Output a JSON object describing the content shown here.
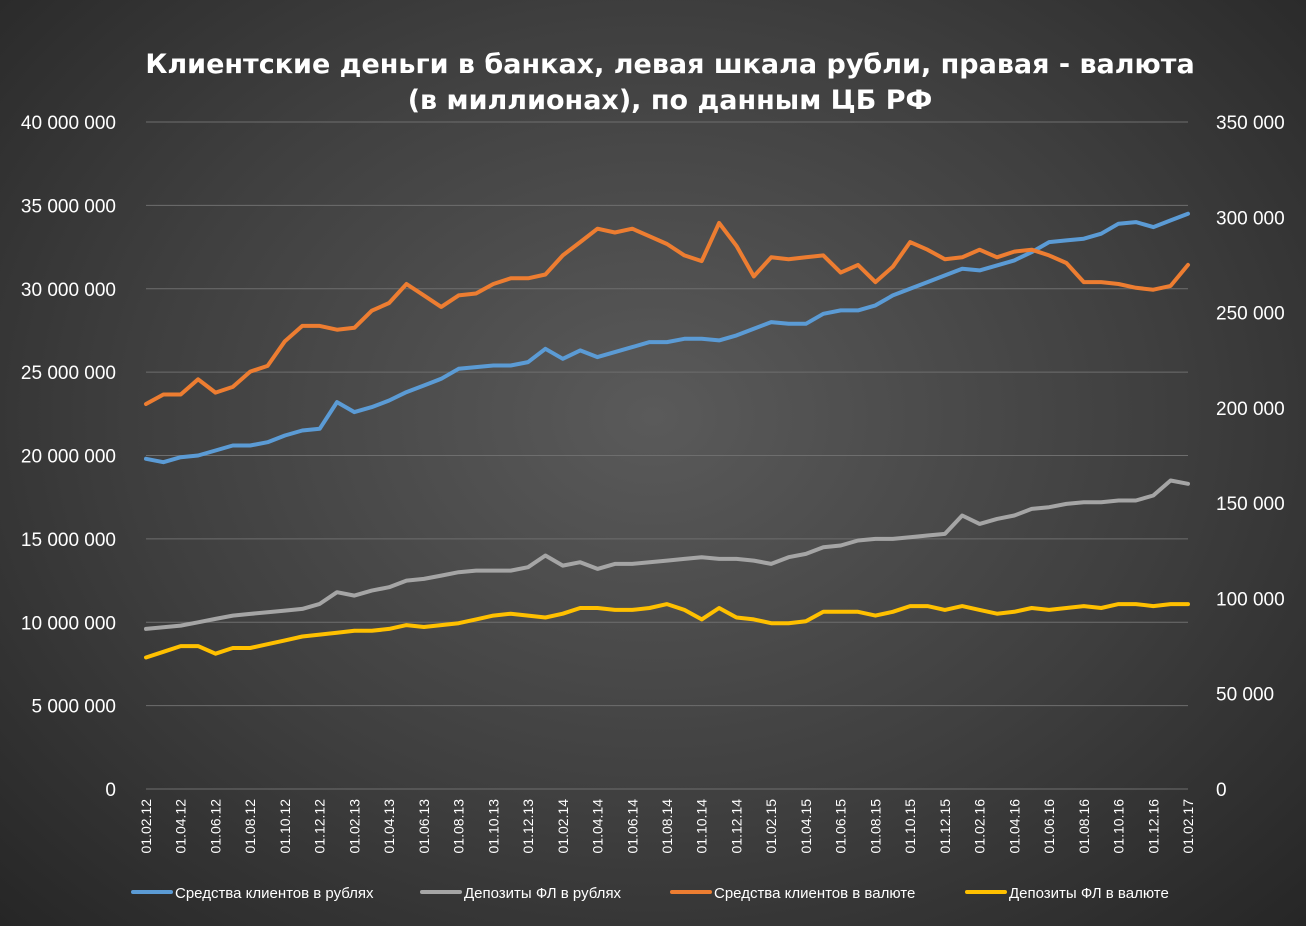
{
  "chart_data": {
    "type": "line",
    "title": "Клиентские деньги в банках, левая шкала рубли, правая - валюта",
    "subtitle": "(в миллионах), по данным ЦБ РФ",
    "x_tick_labels": [
      "01.02.12",
      "01.04.12",
      "01.06.12",
      "01.08.12",
      "01.10.12",
      "01.12.12",
      "01.02.13",
      "01.04.13",
      "01.06.13",
      "01.08.13",
      "01.10.13",
      "01.12.13",
      "01.02.14",
      "01.04.14",
      "01.06.14",
      "01.08.14",
      "01.10.14",
      "01.12.14",
      "01.02.15",
      "01.04.15",
      "01.06.15",
      "01.08.15",
      "01.10.15",
      "01.12.15",
      "01.02.16",
      "01.04.16",
      "01.06.16",
      "01.08.16",
      "01.10.16",
      "01.12.16",
      "01.02.17"
    ],
    "y_left": {
      "ylim": [
        0,
        40000000
      ],
      "ticks": [
        0,
        5000000,
        10000000,
        15000000,
        20000000,
        25000000,
        30000000,
        35000000,
        40000000
      ],
      "tick_labels": [
        "0",
        "5 000 000",
        "10 000 000",
        "15 000 000",
        "20 000 000",
        "25 000 000",
        "30 000 000",
        "35 000 000",
        "40 000 000"
      ]
    },
    "y_right": {
      "ylim": [
        0,
        350000
      ],
      "ticks": [
        0,
        50000,
        100000,
        150000,
        200000,
        250000,
        300000,
        350000
      ],
      "tick_labels": [
        "0",
        "50 000",
        "100 000",
        "150 000",
        "200 000",
        "250 000",
        "300 000",
        "350 000"
      ]
    },
    "grid": true,
    "legend_position": "bottom",
    "series": [
      {
        "name": "Средства клиентов в рублях",
        "axis": "left",
        "color": "#5b9bd5",
        "values": [
          19800000,
          19600000,
          19900000,
          20000000,
          20300000,
          20600000,
          20600000,
          20800000,
          21200000,
          21500000,
          21600000,
          23200000,
          22600000,
          22900000,
          23300000,
          23800000,
          24200000,
          24600000,
          25200000,
          25300000,
          25400000,
          25400000,
          25600000,
          26400000,
          25800000,
          26300000,
          25900000,
          26200000,
          26500000,
          26800000,
          26800000,
          27000000,
          27000000,
          26900000,
          27200000,
          27600000,
          28000000,
          27900000,
          27900000,
          28500000,
          28700000,
          28700000,
          29000000,
          29600000,
          30000000,
          30400000,
          30800000,
          31200000,
          31100000,
          31400000,
          31700000,
          32200000,
          32800000,
          32900000,
          33000000,
          33300000,
          33900000,
          34000000,
          33700000,
          34100000,
          34500000
        ]
      },
      {
        "name": "Депозиты ФЛ в рублях",
        "axis": "left",
        "color": "#a5a5a5",
        "values": [
          9600000,
          9700000,
          9800000,
          10000000,
          10200000,
          10400000,
          10500000,
          10600000,
          10700000,
          10800000,
          11100000,
          11800000,
          11600000,
          11900000,
          12100000,
          12500000,
          12600000,
          12800000,
          13000000,
          13100000,
          13100000,
          13100000,
          13300000,
          14000000,
          13400000,
          13600000,
          13200000,
          13500000,
          13500000,
          13600000,
          13700000,
          13800000,
          13900000,
          13800000,
          13800000,
          13700000,
          13500000,
          13900000,
          14100000,
          14500000,
          14600000,
          14900000,
          15000000,
          15000000,
          15100000,
          15200000,
          15300000,
          16400000,
          15900000,
          16200000,
          16400000,
          16800000,
          16900000,
          17100000,
          17200000,
          17200000,
          17300000,
          17300000,
          17600000,
          18500000,
          18300000
        ]
      },
      {
        "name": "Средства  клиентов в валюте",
        "axis": "right",
        "color": "#ed7d31",
        "values": [
          202000,
          207000,
          207000,
          215000,
          208000,
          211000,
          219000,
          222000,
          235000,
          243000,
          243000,
          241000,
          242000,
          251000,
          255000,
          265000,
          259000,
          253000,
          259000,
          260000,
          265000,
          268000,
          268000,
          270000,
          280000,
          287000,
          294000,
          292000,
          294000,
          290000,
          286000,
          280000,
          277000,
          297000,
          285000,
          269000,
          279000,
          278000,
          279000,
          280000,
          271000,
          275000,
          266000,
          274000,
          287000,
          283000,
          278000,
          279000,
          283000,
          279000,
          282000,
          283000,
          280000,
          276000,
          266000,
          266000,
          265000,
          263000,
          262000,
          264000,
          275000
        ]
      },
      {
        "name": "Депозиты ФЛ в валюте",
        "axis": "right",
        "color": "#ffc000",
        "values": [
          69000,
          72000,
          75000,
          75000,
          71000,
          74000,
          74000,
          76000,
          78000,
          80000,
          81000,
          82000,
          83000,
          83000,
          84000,
          86000,
          85000,
          86000,
          87000,
          89000,
          91000,
          92000,
          91000,
          90000,
          92000,
          95000,
          95000,
          94000,
          94000,
          95000,
          97000,
          94000,
          89000,
          95000,
          90000,
          89000,
          87000,
          87000,
          88000,
          93000,
          93000,
          93000,
          91000,
          93000,
          96000,
          96000,
          94000,
          96000,
          94000,
          92000,
          93000,
          95000,
          94000,
          95000,
          96000,
          95000,
          97000,
          97000,
          96000,
          97000,
          97000
        ]
      }
    ]
  }
}
